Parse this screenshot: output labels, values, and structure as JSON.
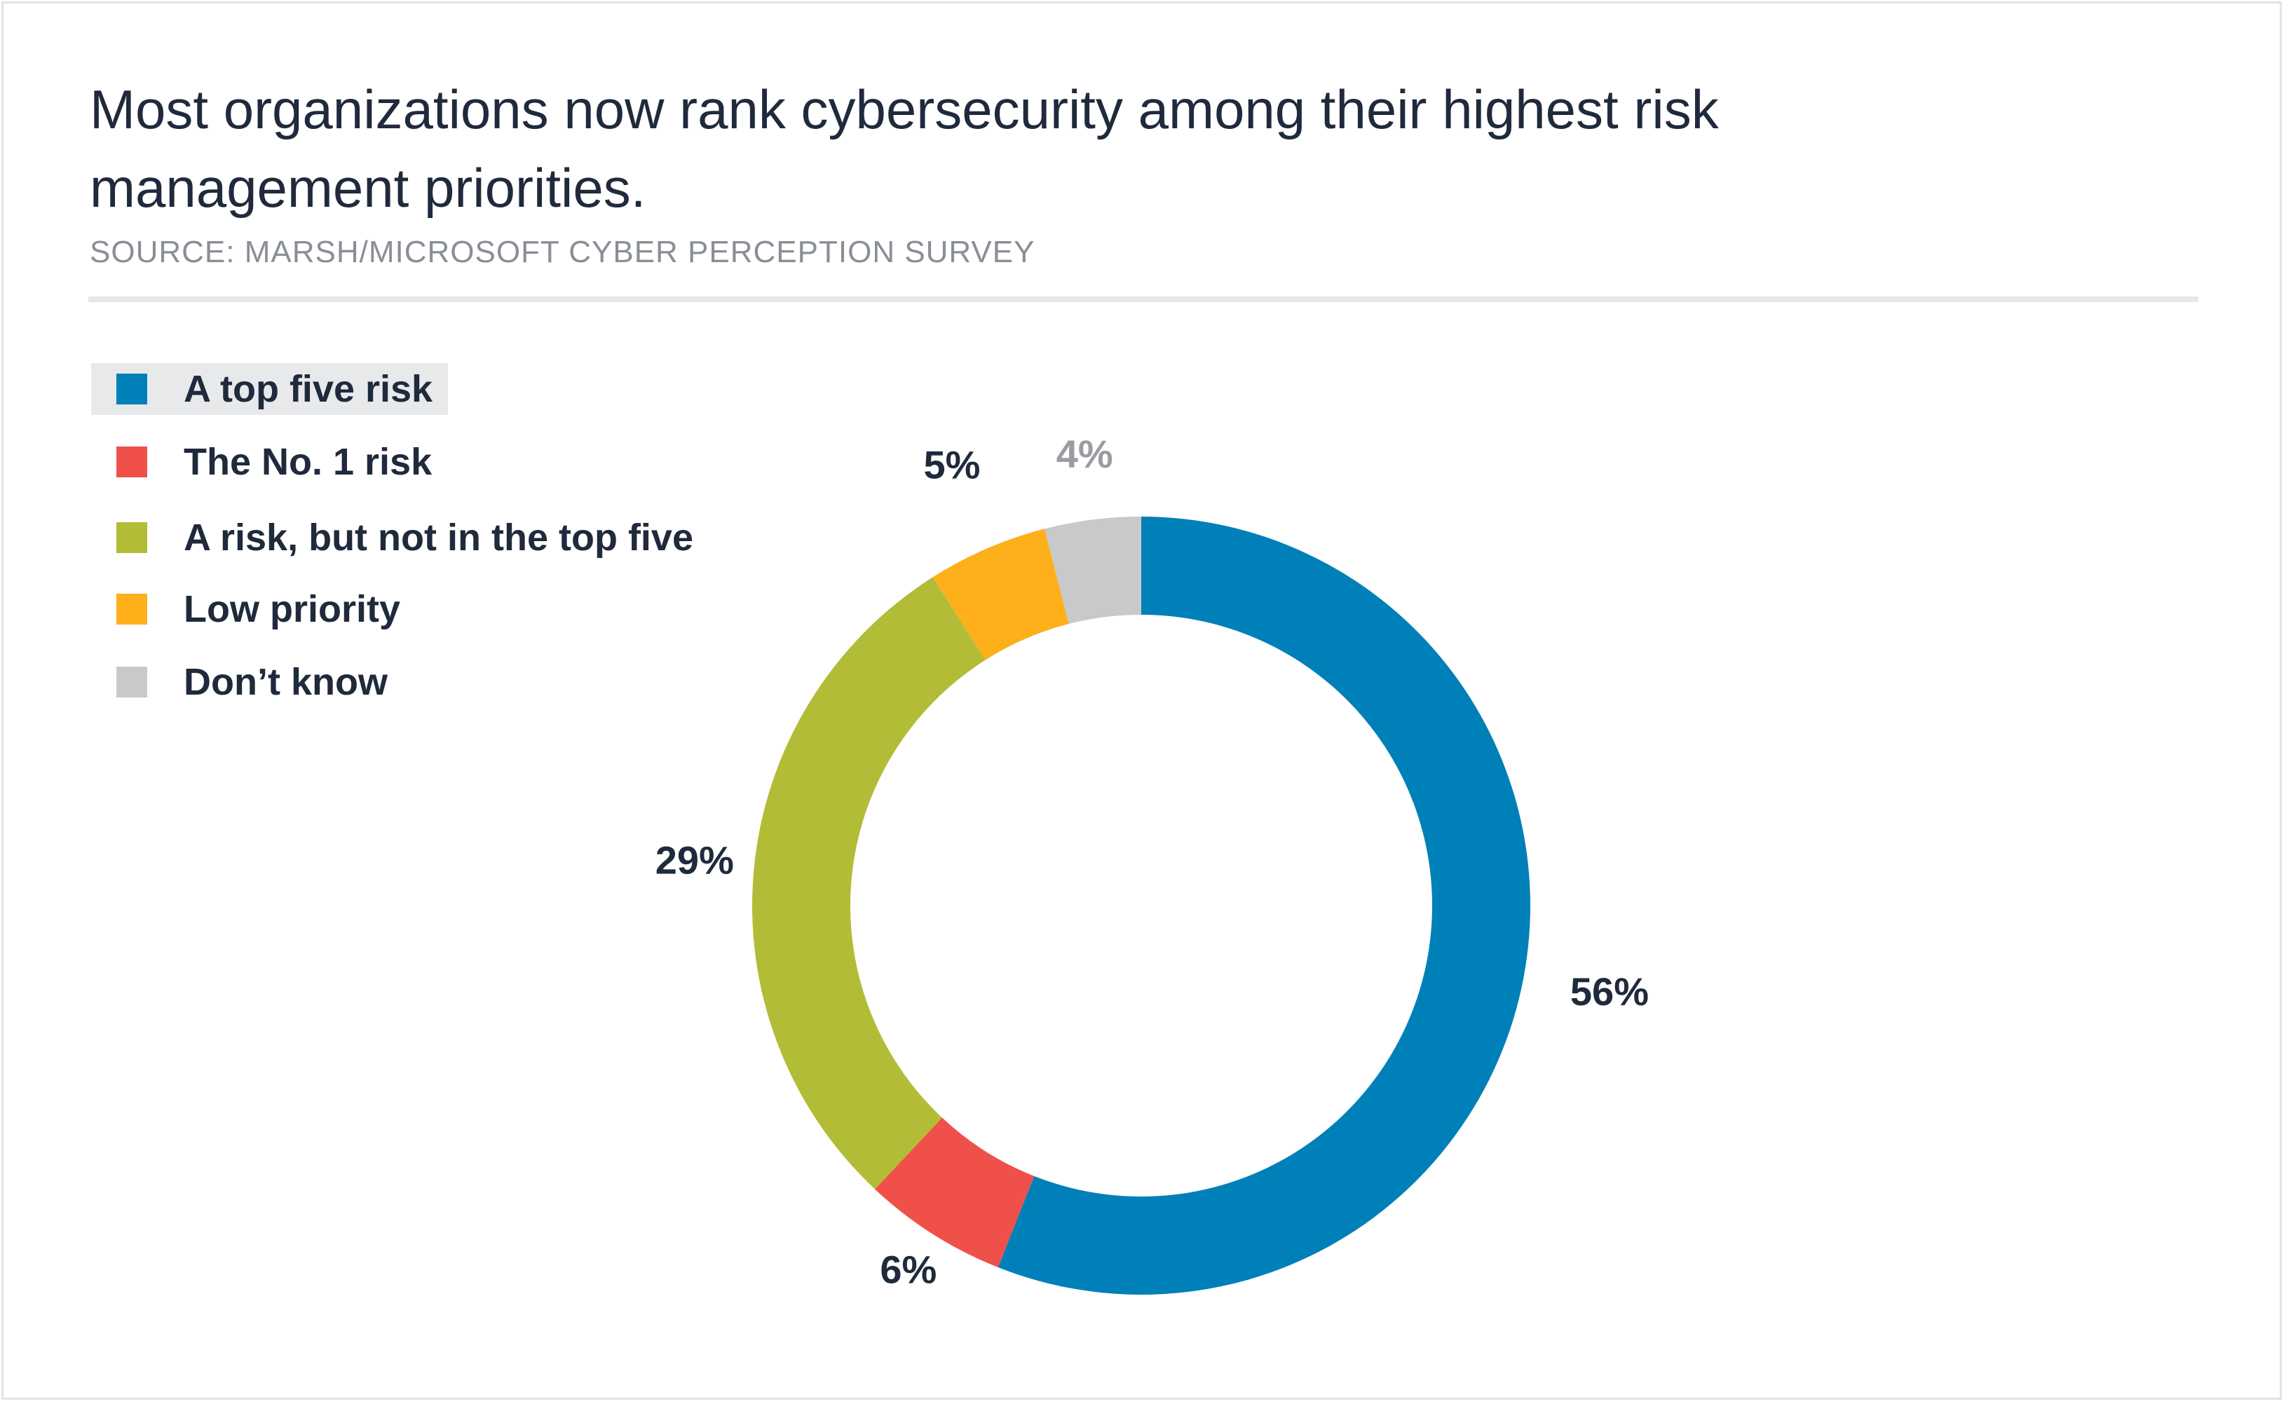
{
  "chart_data": {
    "type": "pie",
    "style": "donut",
    "title": "Most organizations now rank cybersecurity among their highest risk management priorities.",
    "source": "SOURCE: MARSH/MICROSOFT CYBER PERCEPTION SURVEY",
    "legend_position": "top-left",
    "slices": [
      {
        "name": "A top five risk",
        "value": 56,
        "label": "56%",
        "color": "#0080b8",
        "label_color": "#1f2a3c"
      },
      {
        "name": "The No. 1 risk",
        "value": 6,
        "label": "6%",
        "color": "#f0504a",
        "label_color": "#1f2a3c"
      },
      {
        "name": "A risk, but not in the top five",
        "value": 29,
        "label": "29%",
        "color": "#b3bc36",
        "label_color": "#1f2a3c"
      },
      {
        "name": "Low priority",
        "value": 5,
        "label": "5%",
        "color": "#fdb019",
        "label_color": "#1f2a3c"
      },
      {
        "name": "Don’t know",
        "value": 4,
        "label": "4%",
        "color": "#c8c9cb",
        "label_color": "#9a9ca1"
      }
    ],
    "highlighted_legend_index": 0
  }
}
